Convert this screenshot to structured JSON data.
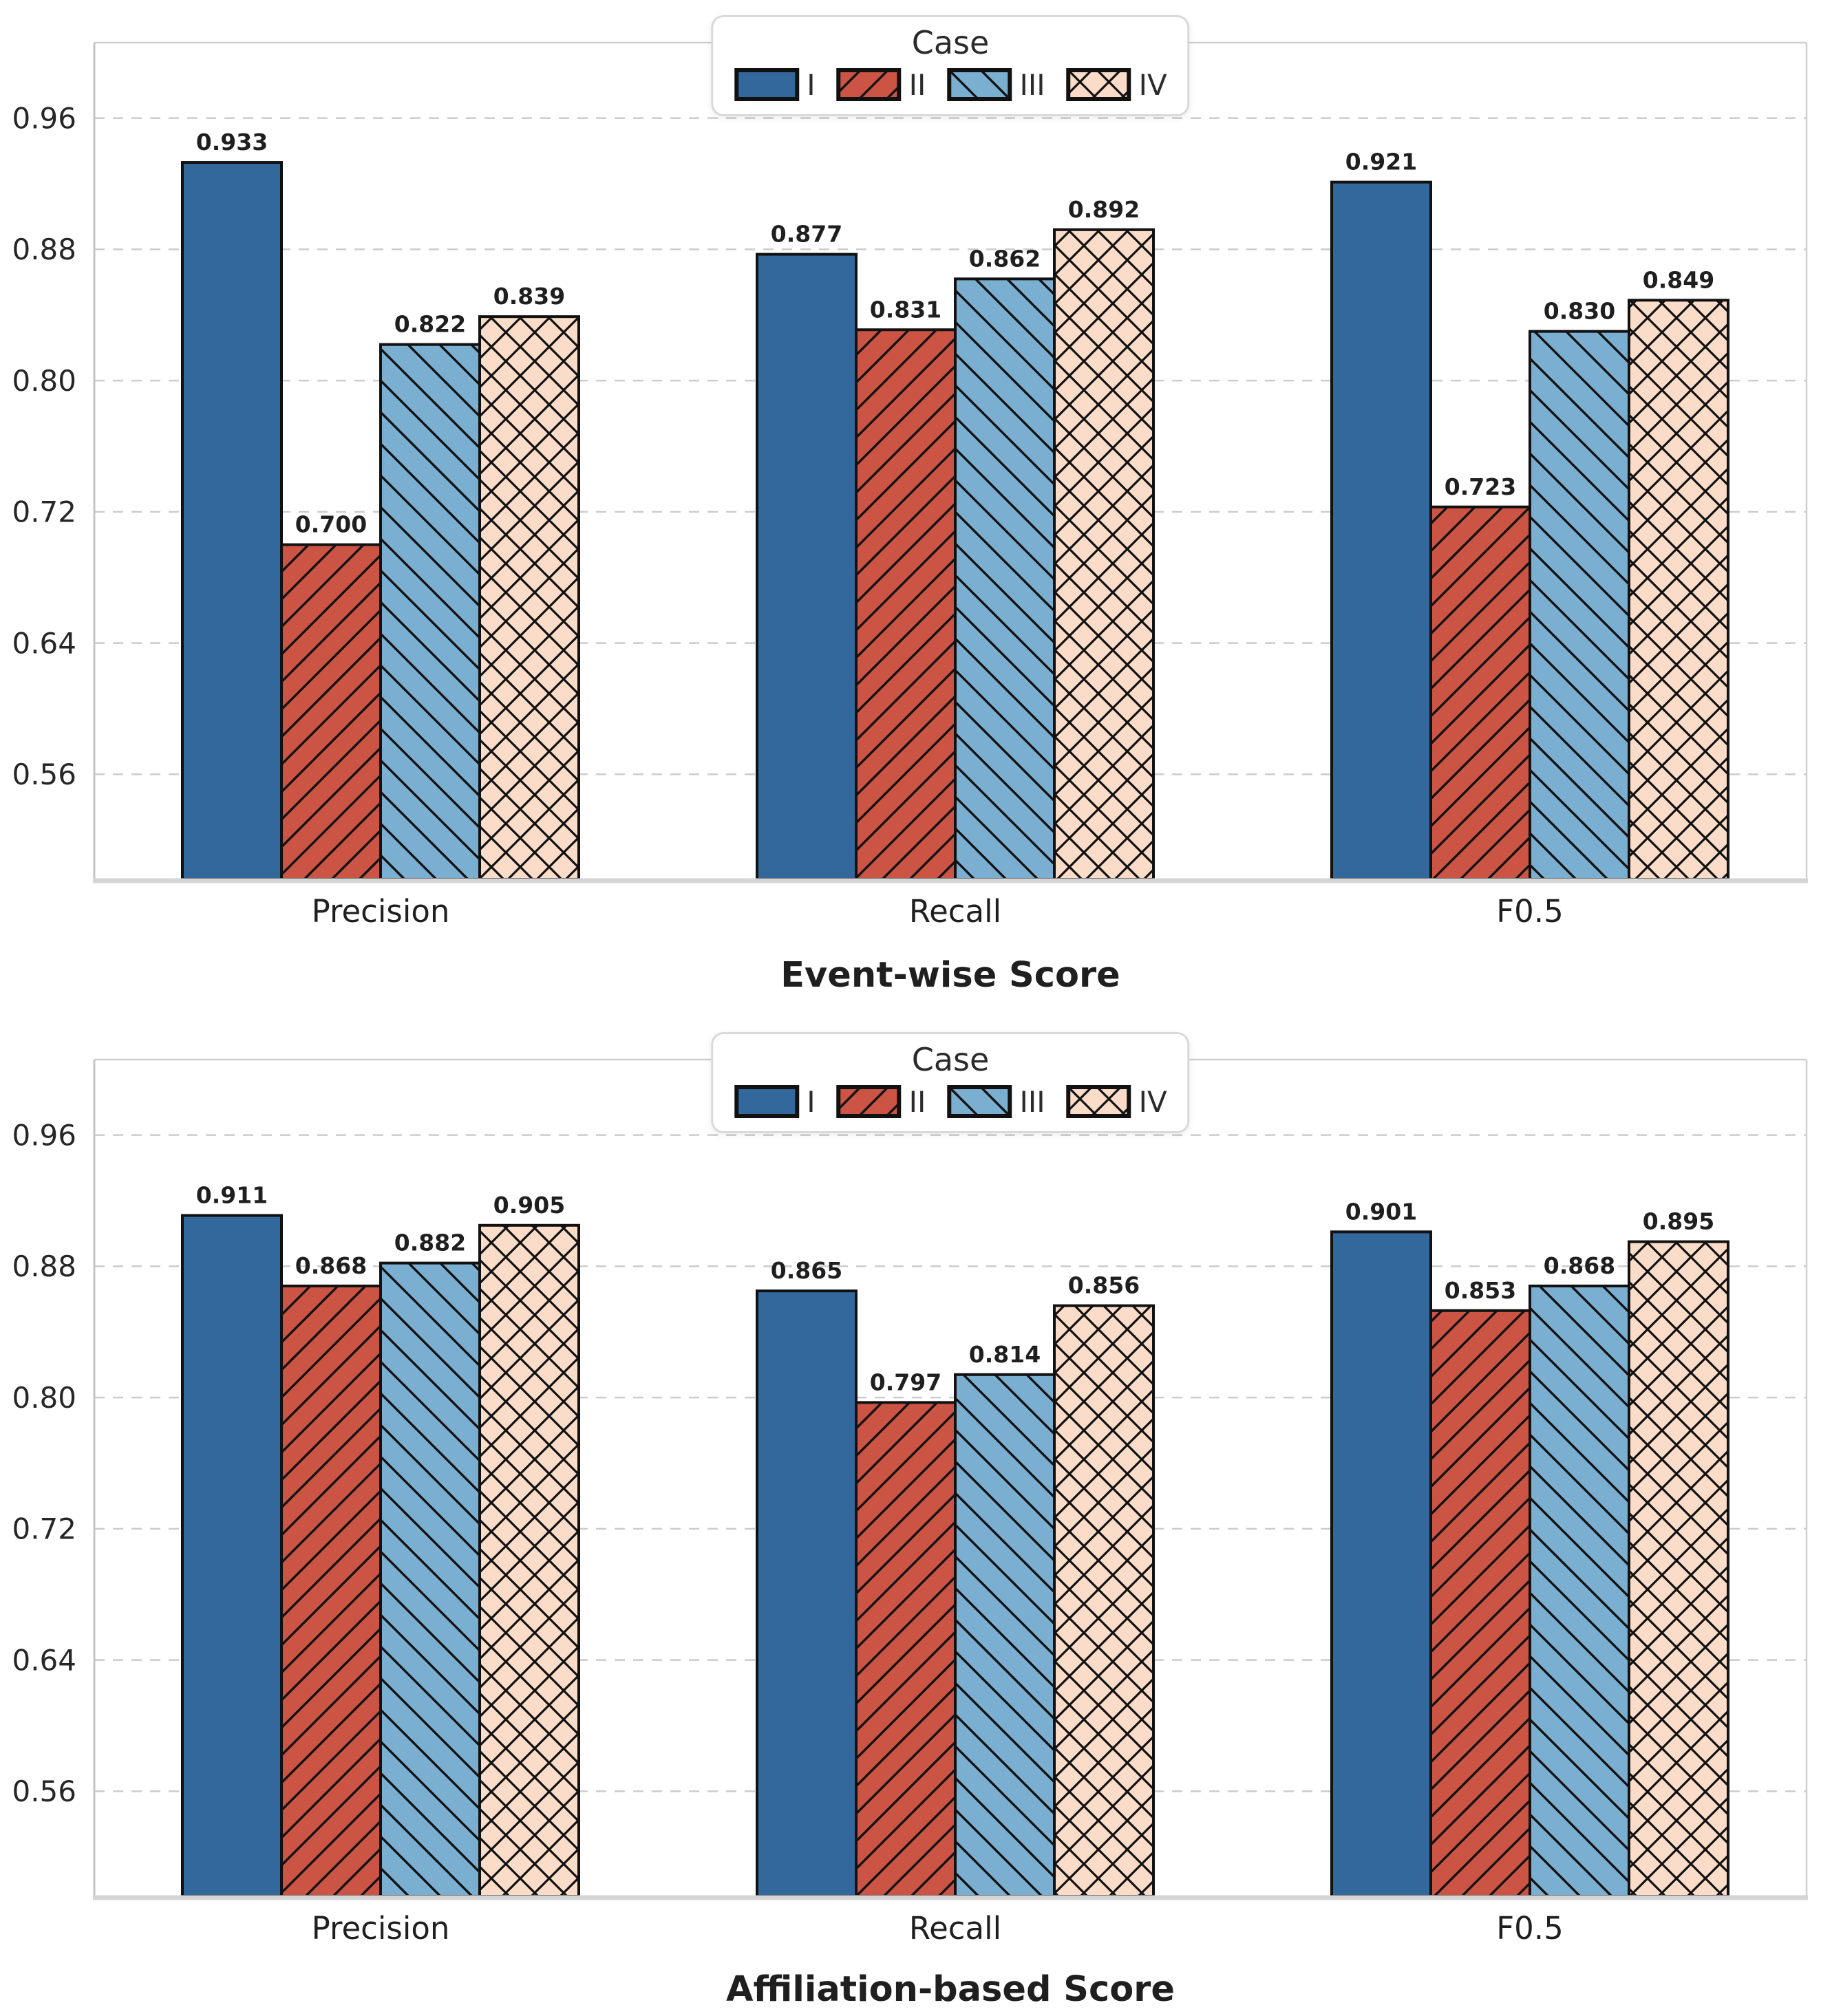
{
  "page": {
    "background": "#ffffff"
  },
  "legend": {
    "title": "Case",
    "entries": [
      {
        "label": "I",
        "color": "#32689C",
        "hatch": "none"
      },
      {
        "label": "II",
        "color": "#CB5444",
        "hatch": "diagonal-forward"
      },
      {
        "label": "III",
        "color": "#7BAFD1",
        "hatch": "diagonal-backward"
      },
      {
        "label": "IV",
        "color": "#FADCC8",
        "hatch": "crosshatch"
      }
    ]
  },
  "style_colors": {
    "bar_edge": "#111111",
    "grid": "#cccccc",
    "spine": "#cfcfcf",
    "bottom_axis": "#d5d5d5",
    "tick_text": "#262626",
    "value_text": "#1f1f1f"
  },
  "chart_data": [
    {
      "type": "bar",
      "title": "Event-wise Score",
      "categories": [
        "Precision",
        "Recall",
        "F0.5"
      ],
      "series": [
        {
          "name": "I",
          "values": [
            0.933,
            0.877,
            0.921
          ],
          "labels": [
            "0.933",
            "0.877",
            "0.921"
          ]
        },
        {
          "name": "II",
          "values": [
            0.7,
            0.831,
            0.723
          ],
          "labels": [
            "0.700",
            "0.831",
            "0.723"
          ]
        },
        {
          "name": "III",
          "values": [
            0.822,
            0.862,
            0.83
          ],
          "labels": [
            "0.822",
            "0.862",
            "0.830"
          ]
        },
        {
          "name": "IV",
          "values": [
            0.839,
            0.892,
            0.849
          ],
          "labels": [
            "0.839",
            "0.892",
            "0.849"
          ]
        }
      ],
      "yticks": [
        0.56,
        0.64,
        0.72,
        0.8,
        0.88,
        0.96
      ],
      "ytick_labels": [
        "0.56",
        "0.64",
        "0.72",
        "0.80",
        "0.88",
        "0.96"
      ],
      "ylim": [
        0.496,
        1.006
      ],
      "grid": "horizontal-dashed",
      "legend_position": "top-center"
    },
    {
      "type": "bar",
      "title": "Affiliation-based Score",
      "categories": [
        "Precision",
        "Recall",
        "F0.5"
      ],
      "series": [
        {
          "name": "I",
          "values": [
            0.911,
            0.865,
            0.901
          ],
          "labels": [
            "0.911",
            "0.865",
            "0.901"
          ]
        },
        {
          "name": "II",
          "values": [
            0.868,
            0.797,
            0.853
          ],
          "labels": [
            "0.868",
            "0.797",
            "0.853"
          ]
        },
        {
          "name": "III",
          "values": [
            0.882,
            0.814,
            0.868
          ],
          "labels": [
            "0.882",
            "0.814",
            "0.868"
          ]
        },
        {
          "name": "IV",
          "values": [
            0.905,
            0.856,
            0.895
          ],
          "labels": [
            "0.905",
            "0.856",
            "0.895"
          ]
        }
      ],
      "yticks": [
        0.56,
        0.64,
        0.72,
        0.8,
        0.88,
        0.96
      ],
      "ytick_labels": [
        "0.56",
        "0.64",
        "0.72",
        "0.80",
        "0.88",
        "0.96"
      ],
      "ylim": [
        0.496,
        1.006
      ],
      "grid": "horizontal-dashed",
      "legend_position": "top-center"
    }
  ]
}
